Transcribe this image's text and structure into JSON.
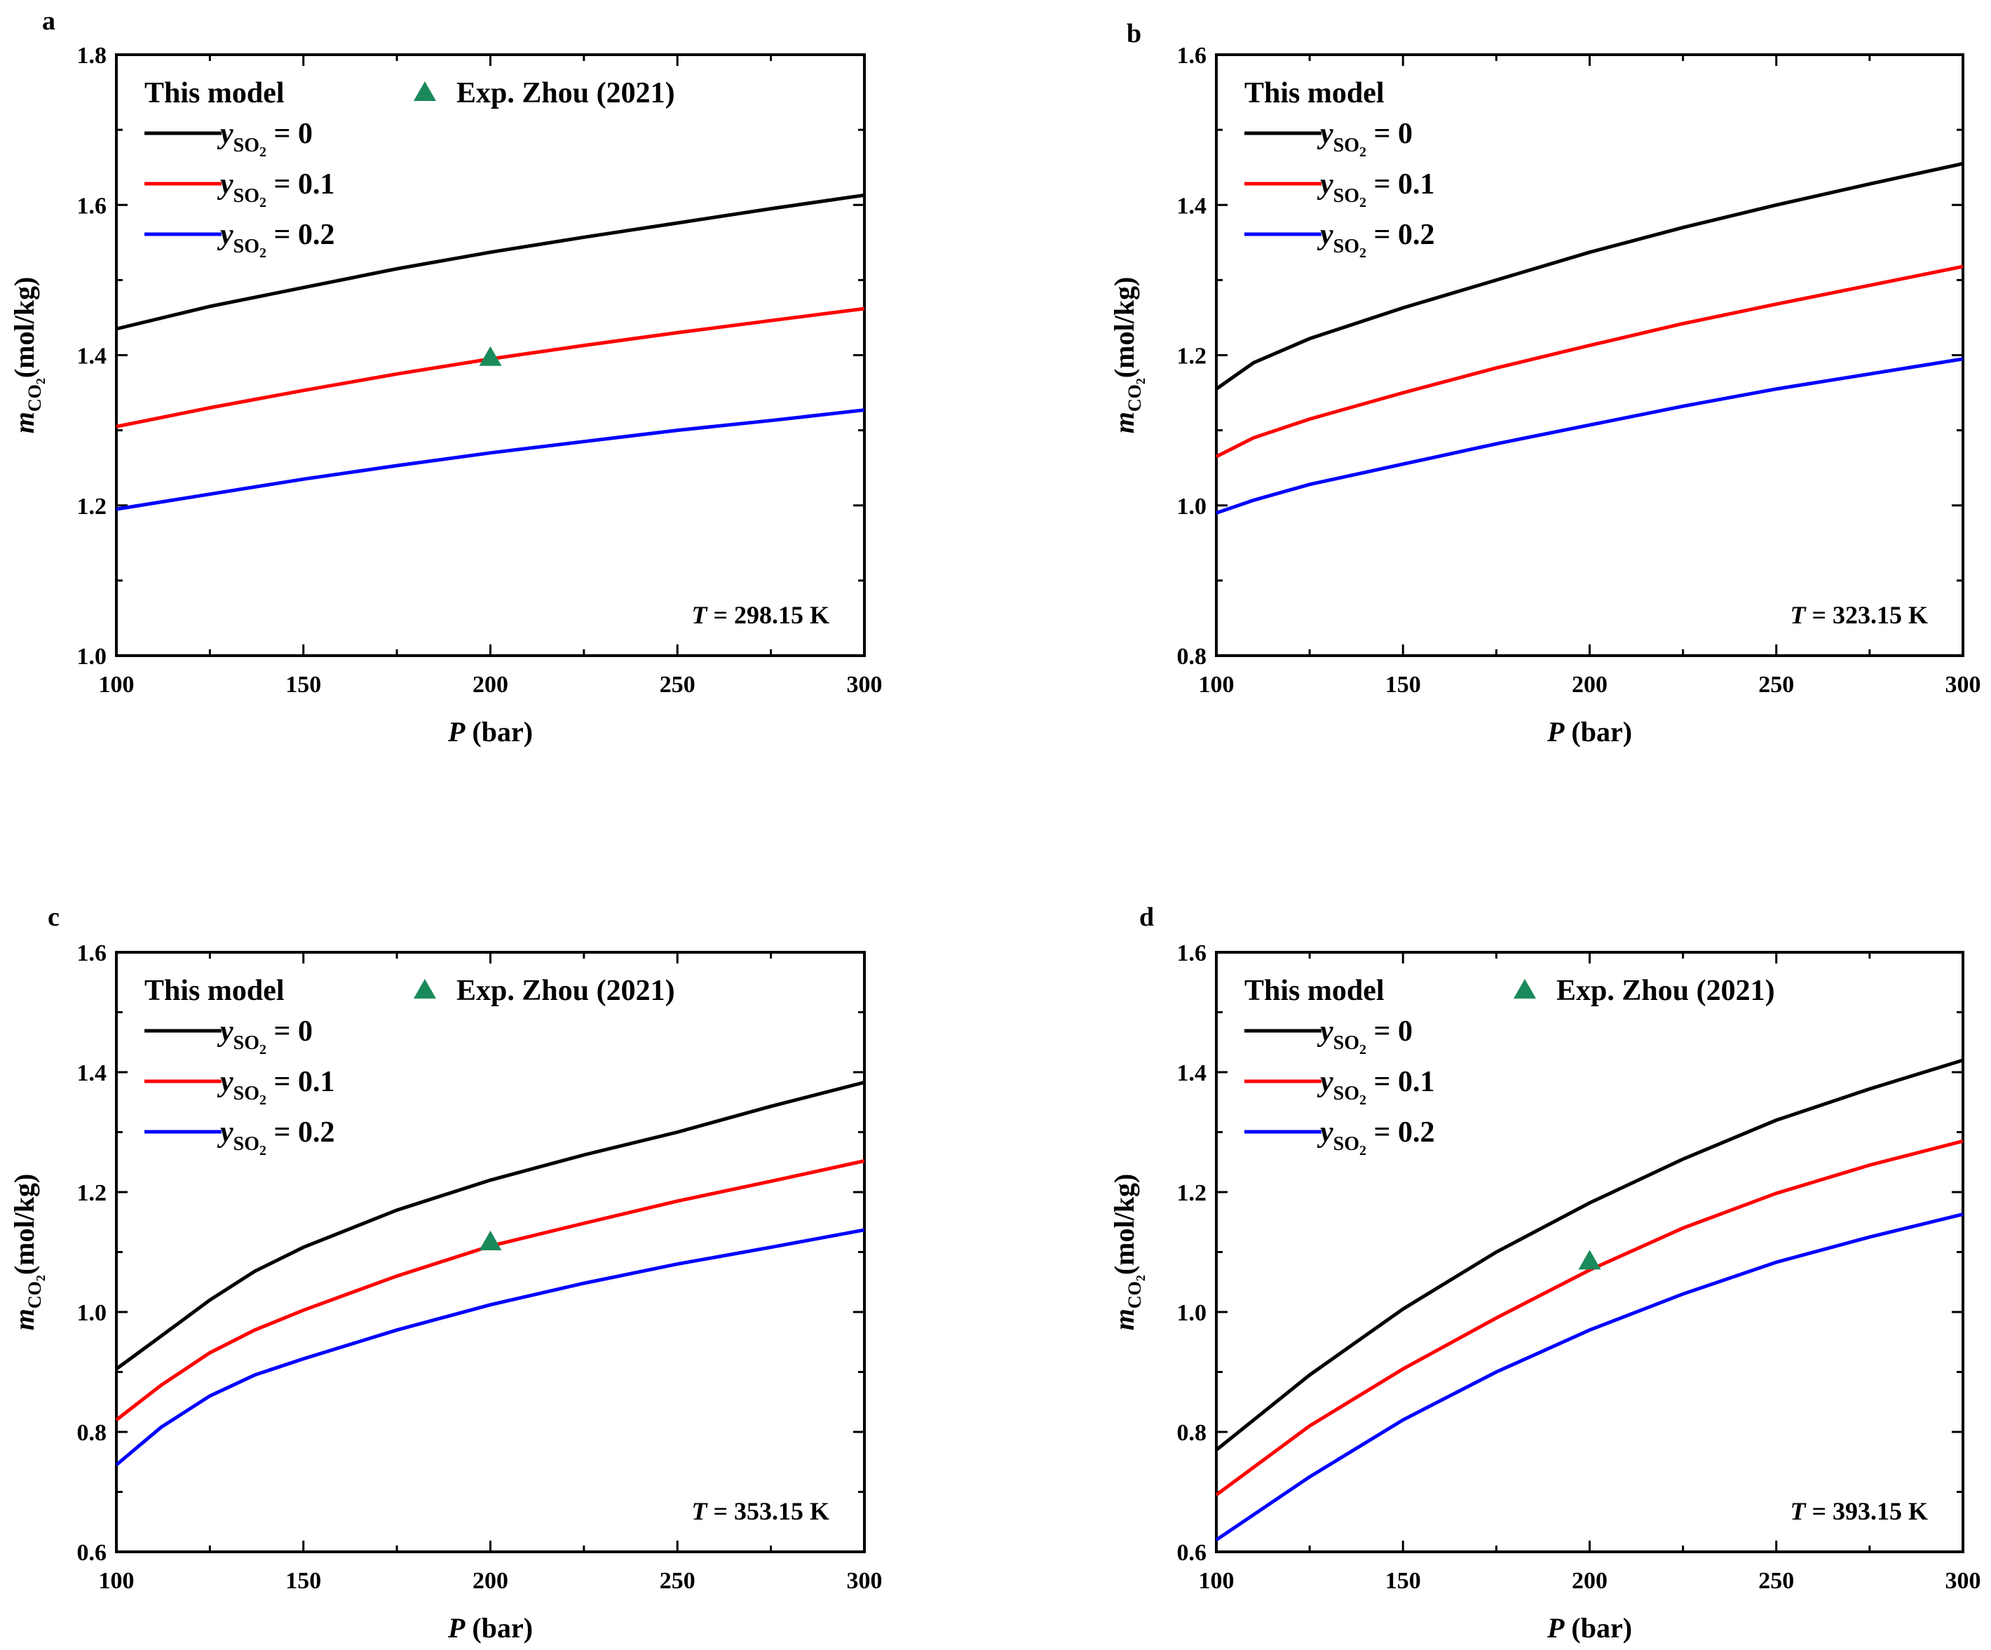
{
  "figure": {
    "legend_header": "This model",
    "exp_label": "Exp. Zhou (2021)",
    "y_axis_label_var": "m",
    "y_axis_label_sub": "CO",
    "y_axis_label_subsub": "2",
    "y_axis_label_unit": "(mol/kg)",
    "x_axis_var": "P",
    "series_label_var": "y",
    "series_label_sub": "SO",
    "series_label_subsub": "2",
    "colors": {
      "black": "#000000",
      "red": "#ff0000",
      "blue": "#0000ff",
      "marker": "#1a8a5a"
    }
  },
  "chart_data": [
    {
      "panel": "a",
      "type": "line",
      "xlabel_unit": "(bar)",
      "temperature_label": "= 298.15 K",
      "temperature_var": "T",
      "xlim": [
        100,
        300
      ],
      "ylim": [
        1.0,
        1.8
      ],
      "x_ticks": [
        "100",
        "150",
        "200",
        "250",
        "300"
      ],
      "y_ticks": [
        "1.0",
        "1.2",
        "1.4",
        "1.6",
        "1.8"
      ],
      "show_exp_legend": true,
      "series": [
        {
          "name": "= 0",
          "color": "#000000",
          "x": [
            100,
            125,
            150,
            175,
            200,
            225,
            250,
            275,
            300
          ],
          "values": [
            1.435,
            1.465,
            1.49,
            1.515,
            1.537,
            1.557,
            1.576,
            1.595,
            1.613
          ]
        },
        {
          "name": "= 0.1",
          "color": "#ff0000",
          "x": [
            100,
            125,
            150,
            175,
            200,
            225,
            250,
            275,
            300
          ],
          "values": [
            1.305,
            1.33,
            1.353,
            1.375,
            1.395,
            1.413,
            1.43,
            1.446,
            1.462
          ]
        },
        {
          "name": "= 0.2",
          "color": "#0000ff",
          "x": [
            100,
            125,
            150,
            175,
            200,
            225,
            250,
            275,
            300
          ],
          "values": [
            1.195,
            1.215,
            1.235,
            1.253,
            1.27,
            1.285,
            1.3,
            1.313,
            1.327
          ]
        }
      ],
      "markers": [
        {
          "x": 200,
          "y": 1.397
        }
      ]
    },
    {
      "panel": "b",
      "type": "line",
      "xlabel_unit": "(bar)",
      "temperature_label": "= 323.15 K",
      "temperature_var": "T",
      "xlim": [
        100,
        300
      ],
      "ylim": [
        0.8,
        1.6
      ],
      "x_ticks": [
        "100",
        "150",
        "200",
        "250",
        "300"
      ],
      "y_ticks": [
        "0.8",
        "1.0",
        "1.2",
        "1.4",
        "1.6"
      ],
      "show_exp_legend": false,
      "series": [
        {
          "name": "= 0",
          "color": "#000000",
          "x": [
            100,
            110,
            125,
            150,
            175,
            200,
            225,
            250,
            275,
            300
          ],
          "values": [
            1.155,
            1.19,
            1.222,
            1.263,
            1.3,
            1.337,
            1.37,
            1.4,
            1.428,
            1.455
          ]
        },
        {
          "name": "= 0.1",
          "color": "#ff0000",
          "x": [
            100,
            110,
            125,
            150,
            175,
            200,
            225,
            250,
            275,
            300
          ],
          "values": [
            1.065,
            1.09,
            1.115,
            1.15,
            1.183,
            1.213,
            1.242,
            1.268,
            1.293,
            1.318
          ]
        },
        {
          "name": "= 0.2",
          "color": "#0000ff",
          "x": [
            100,
            110,
            125,
            150,
            175,
            200,
            225,
            250,
            275,
            300
          ],
          "values": [
            0.99,
            1.007,
            1.028,
            1.055,
            1.082,
            1.107,
            1.132,
            1.155,
            1.175,
            1.195
          ]
        }
      ],
      "markers": []
    },
    {
      "panel": "c",
      "type": "line",
      "xlabel_unit": "(bar)",
      "temperature_label": "= 353.15 K",
      "temperature_var": "T",
      "xlim": [
        100,
        300
      ],
      "ylim": [
        0.6,
        1.6
      ],
      "x_ticks": [
        "100",
        "150",
        "200",
        "250",
        "300"
      ],
      "y_ticks": [
        "0.6",
        "0.8",
        "1.0",
        "1.2",
        "1.4",
        "1.6"
      ],
      "show_exp_legend": true,
      "series": [
        {
          "name": "= 0",
          "color": "#000000",
          "x": [
            100,
            112,
            125,
            137,
            150,
            175,
            200,
            225,
            250,
            275,
            300
          ],
          "values": [
            0.905,
            0.96,
            1.02,
            1.068,
            1.108,
            1.17,
            1.22,
            1.262,
            1.3,
            1.343,
            1.383
          ]
        },
        {
          "name": "= 0.1",
          "color": "#ff0000",
          "x": [
            100,
            112,
            125,
            137,
            150,
            175,
            200,
            225,
            250,
            275,
            300
          ],
          "values": [
            0.82,
            0.878,
            0.932,
            0.97,
            1.003,
            1.06,
            1.11,
            1.148,
            1.185,
            1.218,
            1.252
          ]
        },
        {
          "name": "= 0.2",
          "color": "#0000ff",
          "x": [
            100,
            112,
            125,
            137,
            150,
            175,
            200,
            225,
            250,
            275,
            300
          ],
          "values": [
            0.745,
            0.808,
            0.86,
            0.895,
            0.922,
            0.97,
            1.012,
            1.048,
            1.08,
            1.108,
            1.137
          ]
        }
      ],
      "markers": [
        {
          "x": 200,
          "y": 1.117
        }
      ]
    },
    {
      "panel": "d",
      "type": "line",
      "xlabel_unit": "(bar)",
      "temperature_label": "= 393.15 K",
      "temperature_var": "T",
      "xlim": [
        100,
        300
      ],
      "ylim": [
        0.6,
        1.6
      ],
      "x_ticks": [
        "100",
        "150",
        "200",
        "250",
        "300"
      ],
      "y_ticks": [
        "0.6",
        "0.8",
        "1.0",
        "1.2",
        "1.4",
        "1.6"
      ],
      "show_exp_legend": true,
      "series": [
        {
          "name": "= 0",
          "color": "#000000",
          "x": [
            100,
            125,
            150,
            175,
            200,
            225,
            250,
            275,
            300
          ],
          "values": [
            0.77,
            0.895,
            1.005,
            1.1,
            1.182,
            1.255,
            1.32,
            1.372,
            1.42
          ]
        },
        {
          "name": "= 0.1",
          "color": "#ff0000",
          "x": [
            100,
            125,
            150,
            175,
            200,
            225,
            250,
            275,
            300
          ],
          "values": [
            0.695,
            0.81,
            0.905,
            0.99,
            1.07,
            1.14,
            1.198,
            1.245,
            1.285
          ]
        },
        {
          "name": "= 0.2",
          "color": "#0000ff",
          "x": [
            100,
            125,
            150,
            175,
            200,
            225,
            250,
            275,
            300
          ],
          "values": [
            0.62,
            0.725,
            0.82,
            0.9,
            0.97,
            1.03,
            1.083,
            1.125,
            1.163
          ]
        }
      ],
      "markers": [
        {
          "x": 200,
          "y": 1.085
        }
      ]
    }
  ]
}
